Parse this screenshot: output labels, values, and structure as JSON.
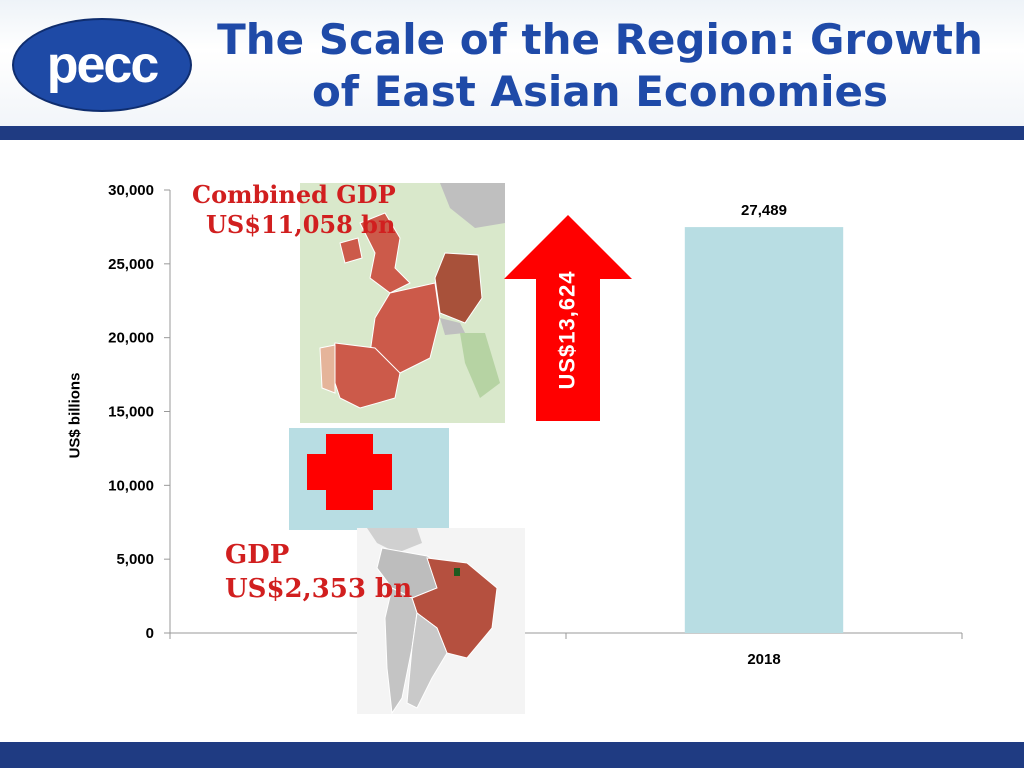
{
  "slide": {
    "logo_text": "pecc",
    "title": "The Scale of the Region: Growth of East Asian Economies"
  },
  "overlays": {
    "europe_label_line1": "Combined GDP",
    "europe_label_line2": "US$11,058 bn",
    "brazil_label_line1": "GDP",
    "brazil_label_line2": "US$2,353 bn",
    "arrow_label": "US$13,624"
  },
  "colors": {
    "title": "#1f4aa8",
    "band": "#1f3b82",
    "bar": "#b8dde3",
    "arrow": "#ff0000",
    "map_highlight": "#cc5a4a",
    "overlay_text": "#d11f1f"
  },
  "chart_data": {
    "type": "bar",
    "categories": [
      "",
      "2018"
    ],
    "values": [
      null,
      27489
    ],
    "data_labels": [
      "",
      "27,489"
    ],
    "ylabel": "US$ billions",
    "xlabel": "",
    "ylim": [
      0,
      30000
    ],
    "yticks": [
      0,
      5000,
      10000,
      15000,
      20000,
      25000,
      30000
    ],
    "ytick_labels": [
      "0",
      "5,000",
      "10,000",
      "15,000",
      "20,000",
      "25,000",
      "30,000"
    ],
    "grid": false,
    "legend": "none"
  }
}
